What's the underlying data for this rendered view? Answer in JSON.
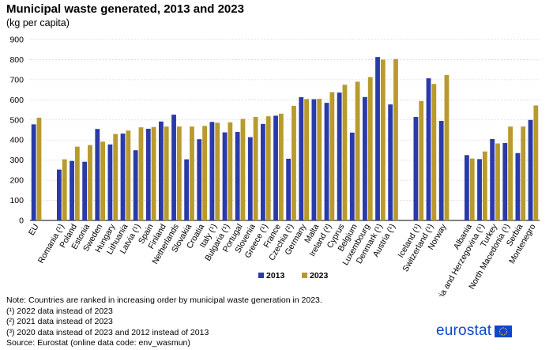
{
  "chart_data": {
    "type": "bar",
    "title": "Municipal waste generated, 2013 and 2023",
    "subtitle": "(kg per capita)",
    "ylim": [
      0,
      900
    ],
    "yticks": [
      0,
      100,
      200,
      300,
      400,
      500,
      600,
      700,
      800,
      900
    ],
    "grid": true,
    "legend_position": "bottom-center",
    "groups": [
      1,
      27,
      3,
      7
    ],
    "categories": [
      "EU",
      "Romania (¹)",
      "Poland",
      "Estonia",
      "Sweden",
      "Hungary",
      "Lithuania",
      "Latvia (¹)",
      "Spain",
      "Finland",
      "Netherlands",
      "Slovakia",
      "Croatia",
      "Italy (¹)",
      "Bulgaria (¹)",
      "Portugal",
      "Slovenia",
      "Greece (¹)",
      "France",
      "Czechia (²)",
      "Germany",
      "Malta",
      "Ireland (²)",
      "Cyprus",
      "Belgium",
      "Luxembourg",
      "Denmark (¹)",
      "Austria (¹)",
      "Iceland (¹)",
      "Switzerland (¹)",
      "Norway",
      "Albania",
      "Bosnia and Herzegovina (¹)",
      "Turkey",
      "North Macedonia (¹)",
      "Serbia",
      "Montenegro"
    ],
    "series": [
      {
        "name": "2013",
        "color": "#2a3aa8",
        "values": [
          478,
          253,
          296,
          292,
          455,
          378,
          432,
          349,
          456,
          492,
          526,
          304,
          404,
          490,
          438,
          440,
          414,
          480,
          521,
          307,
          613,
          603,
          585,
          636,
          437,
          614,
          813,
          577,
          515,
          707,
          495,
          325,
          305,
          405,
          385,
          335,
          500
        ]
      },
      {
        "name": "2023",
        "color": "#b89a2d",
        "values": [
          511,
          304,
          367,
          375,
          392,
          430,
          447,
          463,
          465,
          467,
          467,
          467,
          470,
          486,
          488,
          505,
          515,
          518,
          531,
          570,
          604,
          605,
          638,
          675,
          690,
          713,
          800,
          803,
          594,
          679,
          723,
          308,
          343,
          383,
          467,
          467,
          572
        ]
      }
    ]
  },
  "notes": {
    "ranking": "Note: Countries are ranked in increasing order by municipal waste generation in 2023.",
    "n1": "(¹) 2022 data instead of 2023",
    "n2": "(²) 2021 data instead of 2023",
    "n3": "(³) 2020 data instead of 2023 and 2012 instead of 2013",
    "source": "Source: Eurostat (online data code: env_wasmun)"
  },
  "brand": {
    "logo_text": "eurostat",
    "logo_color": "#0e47cb"
  }
}
